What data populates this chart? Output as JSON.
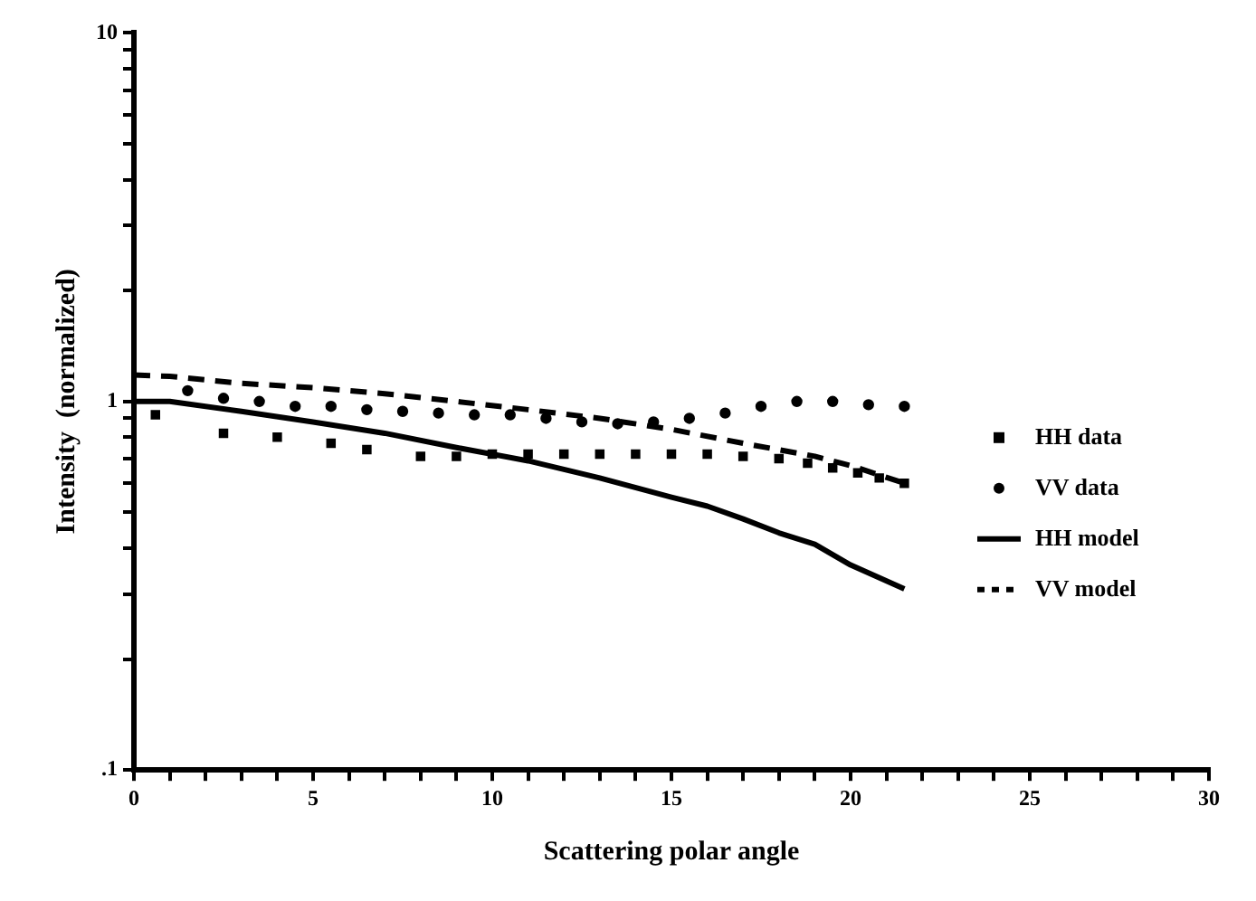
{
  "chart_data": {
    "type": "scatter",
    "xlabel": "Scattering polar angle",
    "ylabel": "Intensity  (normalized)",
    "log": "y",
    "legend": "right",
    "grid": false,
    "xlim": [
      0,
      30
    ],
    "xticks": [
      0,
      {
        "value": 1,
        "label": null
      },
      {
        "value": 2,
        "label": null
      },
      {
        "value": 3,
        "label": null
      },
      {
        "value": 4,
        "label": null
      },
      5,
      {
        "value": 6,
        "label": null
      },
      {
        "value": 7,
        "label": null
      },
      {
        "value": 8,
        "label": null
      },
      {
        "value": 9,
        "label": null
      },
      10,
      {
        "value": 11,
        "label": null
      },
      {
        "value": 12,
        "label": null
      },
      {
        "value": 13,
        "label": null
      },
      {
        "value": 14,
        "label": null
      },
      15,
      {
        "value": 16,
        "label": null
      },
      {
        "value": 17,
        "label": null
      },
      {
        "value": 18,
        "label": null
      },
      {
        "value": 19,
        "label": null
      },
      20,
      {
        "value": 21,
        "label": null
      },
      {
        "value": 22,
        "label": null
      },
      {
        "value": 23,
        "label": null
      },
      {
        "value": 24,
        "label": null
      },
      25,
      {
        "value": 26,
        "label": null
      },
      {
        "value": 27,
        "label": null
      },
      {
        "value": 28,
        "label": null
      },
      {
        "value": 29,
        "label": null
      },
      30
    ],
    "ylim": [
      0.1,
      10
    ],
    "yticks": [
      {
        "value": 0.1,
        "label": ".1"
      },
      {
        "value": 0.2,
        "label": null
      },
      {
        "value": 0.3,
        "label": null
      },
      {
        "value": 0.4,
        "label": null
      },
      {
        "value": 0.5,
        "label": null
      },
      {
        "value": 0.6,
        "label": null
      },
      {
        "value": 0.7,
        "label": null
      },
      {
        "value": 0.8,
        "label": null
      },
      {
        "value": 0.9,
        "label": null
      },
      1,
      {
        "value": 2,
        "label": null
      },
      {
        "value": 3,
        "label": null
      },
      {
        "value": 4,
        "label": null
      },
      {
        "value": 5,
        "label": null
      },
      {
        "value": 6,
        "label": null
      },
      {
        "value": 7,
        "label": null
      },
      {
        "value": 8,
        "label": null
      },
      {
        "value": 9,
        "label": null
      },
      10
    ],
    "series": [
      {
        "name": "HH data",
        "type": "scatter",
        "marker": "square",
        "color": "#000000",
        "x": [
          0.6,
          2.5,
          4,
          5.5,
          6.5,
          8,
          9,
          10,
          11,
          12,
          13,
          14,
          15,
          16,
          17,
          18,
          18.8,
          19.5,
          20.2,
          20.8,
          21.5
        ],
        "values": [
          0.92,
          0.82,
          0.8,
          0.77,
          0.74,
          0.71,
          0.71,
          0.72,
          0.72,
          0.72,
          0.72,
          0.72,
          0.72,
          0.72,
          0.71,
          0.7,
          0.68,
          0.66,
          0.64,
          0.62,
          0.6
        ]
      },
      {
        "name": "VV data",
        "type": "scatter",
        "marker": "circle",
        "color": "#000000",
        "x": [
          1.5,
          2.5,
          3.5,
          4.5,
          5.5,
          6.5,
          7.5,
          8.5,
          9.5,
          10.5,
          11.5,
          12.5,
          13.5,
          14.5,
          15.5,
          16.5,
          17.5,
          18.5,
          19.5,
          20.5,
          21.5
        ],
        "values": [
          1.07,
          1.02,
          1.0,
          0.97,
          0.97,
          0.95,
          0.94,
          0.93,
          0.92,
          0.92,
          0.9,
          0.88,
          0.87,
          0.88,
          0.9,
          0.93,
          0.97,
          1.0,
          1.0,
          0.98,
          0.97
        ]
      },
      {
        "name": "HH model",
        "type": "line",
        "line_style": "solid",
        "marker": "none",
        "color": "#000000",
        "x": [
          0,
          1,
          3,
          5,
          7,
          9,
          11,
          13,
          15,
          16,
          17,
          18,
          19,
          20,
          21.5
        ],
        "values": [
          1.0,
          1.0,
          0.94,
          0.88,
          0.82,
          0.75,
          0.69,
          0.62,
          0.55,
          0.52,
          0.48,
          0.44,
          0.41,
          0.36,
          0.31
        ]
      },
      {
        "name": "VV model",
        "type": "line",
        "line_style": "dashed",
        "marker": "none",
        "color": "#000000",
        "x": [
          0,
          1,
          3,
          5,
          7,
          9,
          11,
          13,
          15,
          17,
          19,
          20,
          21.5
        ],
        "values": [
          1.18,
          1.17,
          1.12,
          1.09,
          1.05,
          1.0,
          0.95,
          0.9,
          0.84,
          0.77,
          0.71,
          0.67,
          0.6
        ]
      }
    ]
  }
}
